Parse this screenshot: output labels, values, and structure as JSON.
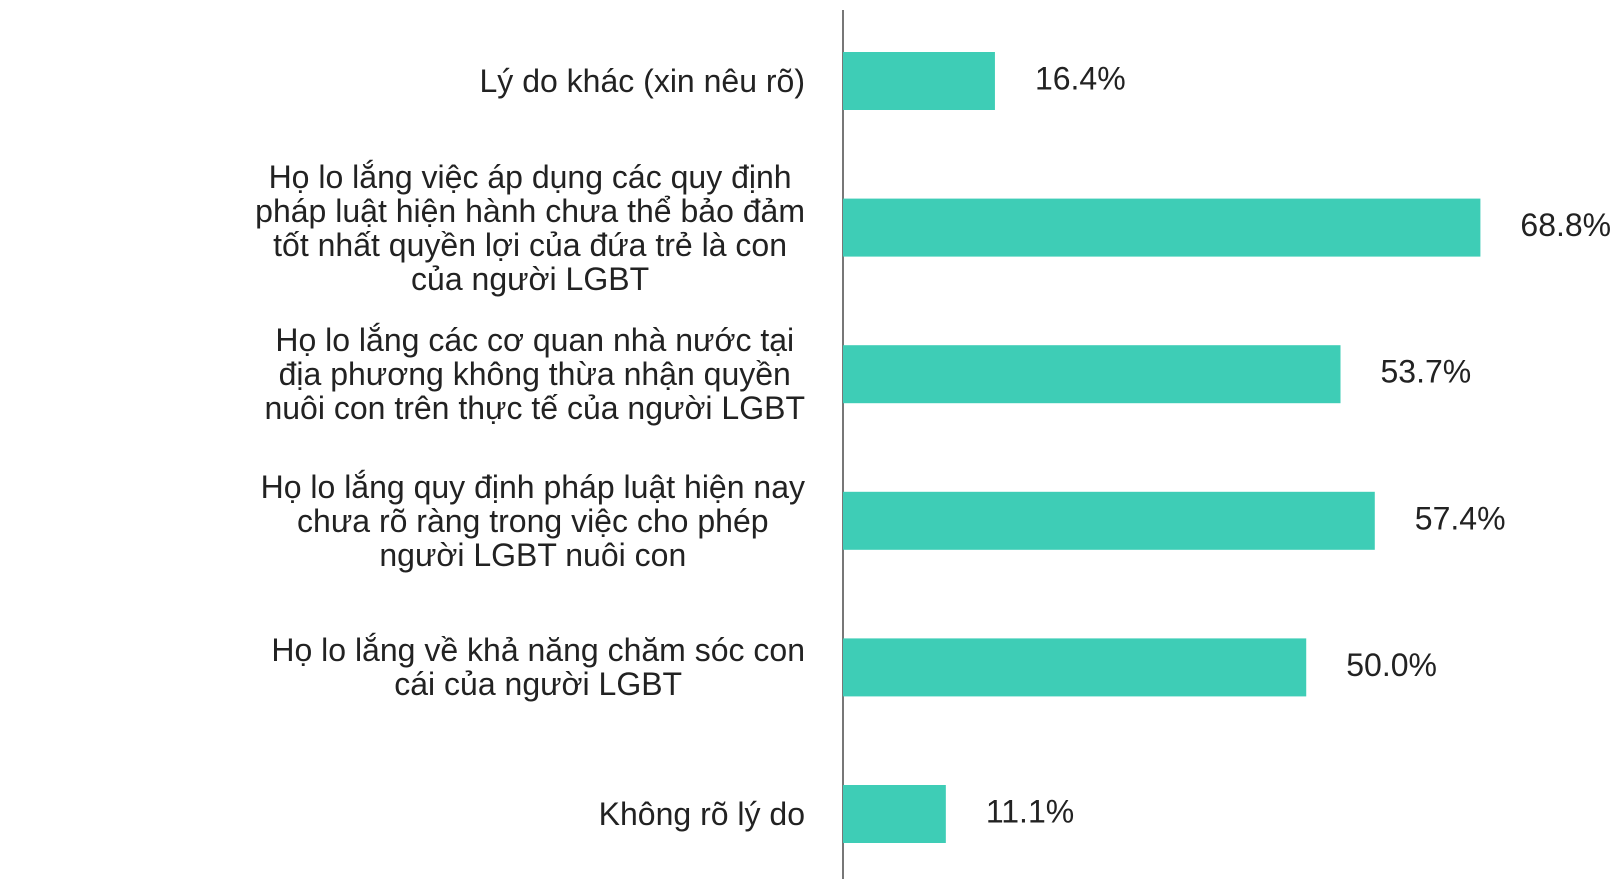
{
  "chart_data": {
    "type": "barh",
    "categories": [
      "Lý do khác (xin nêu rõ)",
      "Họ lo lắng việc áp dụng các quy định\npháp luật hiện hành chưa thể bảo đảm\ntốt nhất quyền lợi của đứa trẻ là con\ncủa người LGBT",
      "Họ lo lắng các cơ quan nhà nước tại\nđịa phương không thừa nhận quyền\nnuôi con trên thực tế của người LGBT",
      "Họ lo lắng quy định pháp luật hiện nay\nchưa rõ ràng trong việc cho phép\nngười LGBT nuôi con",
      "Họ lo lắng về khả năng chăm sóc con\ncái của người LGBT",
      "Không rõ lý do"
    ],
    "values": [
      16.4,
      68.8,
      53.7,
      57.4,
      50.0,
      11.1
    ],
    "value_labels": [
      "16.4%",
      "68.8%",
      "53.7%",
      "57.4%",
      "50.0%",
      "11.1%"
    ],
    "color": "#3ecdb6",
    "xlim": [
      0,
      84.3
    ]
  }
}
